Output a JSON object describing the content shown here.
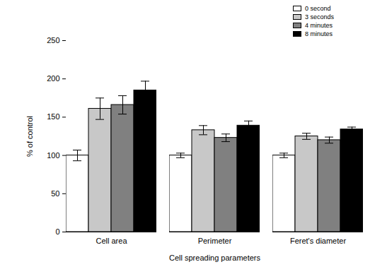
{
  "chart_data": {
    "type": "bar",
    "x_label": "Cell spreading parameters",
    "y_label": "% of control",
    "categories": [
      "Cell area",
      "Perimeter",
      "Feret's diameter"
    ],
    "series": [
      {
        "name": "0 second",
        "color": "#ffffff",
        "values": [
          100,
          100,
          100
        ],
        "errors": [
          7,
          3,
          3
        ]
      },
      {
        "name": "3 seconds",
        "color": "#c8c8c8",
        "values": [
          161,
          133,
          125
        ],
        "errors": [
          14,
          6,
          4
        ]
      },
      {
        "name": "4 minutes",
        "color": "#808080",
        "values": [
          166,
          123,
          120
        ],
        "errors": [
          12,
          5,
          4
        ]
      },
      {
        "name": "8 minutes",
        "color": "#000000",
        "values": [
          185,
          139,
          134
        ],
        "errors": [
          12,
          6,
          3
        ]
      }
    ],
    "ylim": [
      0,
      250
    ],
    "yticks": [
      0,
      50,
      100,
      150,
      200,
      250
    ],
    "legend": "top-right",
    "grid": false
  }
}
